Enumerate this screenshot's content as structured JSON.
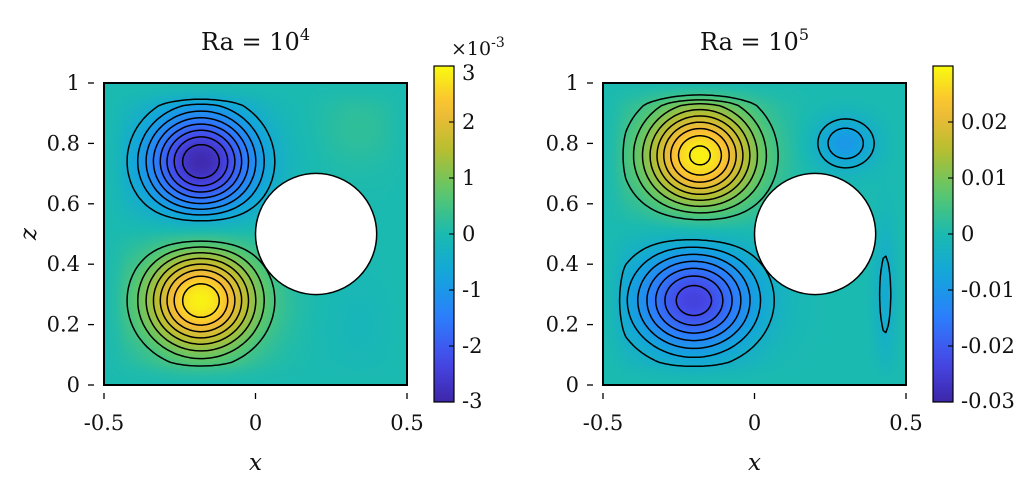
{
  "chart_data": [
    {
      "type": "heatmap",
      "title": "Ra = 10^4",
      "title_base": "Ra = 10",
      "title_exp": "4",
      "xlabel": "x",
      "ylabel": "z",
      "xlim": [
        -0.5,
        0.5
      ],
      "ylim": [
        0,
        1
      ],
      "xticks": [
        "-0.5",
        "0",
        "0.5"
      ],
      "yticks": [
        "0",
        "0.2",
        "0.4",
        "0.6",
        "0.8",
        "1"
      ],
      "obstacle": {
        "shape": "circle",
        "center_x": 0.2,
        "center_z": 0.5,
        "radius": 0.2
      },
      "colorbar": {
        "clim": [
          -3,
          3
        ],
        "scale_label": "×10^-3",
        "scale_base": "×10",
        "scale_exp": "-3",
        "ticks": [
          "-3",
          "-2",
          "-1",
          "0",
          "1",
          "2",
          "3"
        ],
        "tick_values": [
          -3,
          -2,
          -1,
          0,
          1,
          2,
          3
        ]
      },
      "features": [
        {
          "kind": "min",
          "x": -0.18,
          "z": 0.74,
          "value": -2.9,
          "sx": 0.13,
          "sz": 0.12
        },
        {
          "kind": "max",
          "x": -0.18,
          "z": 0.28,
          "value": 2.9,
          "sx": 0.13,
          "sz": 0.12
        },
        {
          "kind": "max",
          "x": 0.34,
          "z": 0.85,
          "value": 0.25,
          "sx": 0.09,
          "sz": 0.09
        },
        {
          "kind": "min",
          "x": 0.34,
          "z": 0.2,
          "value": -0.15,
          "sx": 0.08,
          "sz": 0.12
        }
      ],
      "contour_levels": [
        -2.6,
        -2.3,
        -2.0,
        -1.7,
        -1.4,
        -1.1,
        -0.8,
        -0.5,
        0.5,
        0.8,
        1.1,
        1.4,
        1.7,
        2.0,
        2.3,
        2.6
      ]
    },
    {
      "type": "heatmap",
      "title": "Ra = 10^5",
      "title_base": "Ra = 10",
      "title_exp": "5",
      "xlabel": "x",
      "ylabel": "",
      "xlim": [
        -0.5,
        0.5
      ],
      "ylim": [
        0,
        1
      ],
      "xticks": [
        "-0.5",
        "0",
        "0.5"
      ],
      "yticks": [
        "0",
        "0.2",
        "0.4",
        "0.6",
        "0.8",
        "1"
      ],
      "obstacle": {
        "shape": "circle",
        "center_x": 0.2,
        "center_z": 0.5,
        "radius": 0.2
      },
      "colorbar": {
        "clim": [
          -0.03,
          0.03
        ],
        "scale_label": "",
        "ticks": [
          "-0.03",
          "-0.02",
          "-0.01",
          "0",
          "0.01",
          "0.02"
        ],
        "tick_values": [
          -0.03,
          -0.02,
          -0.01,
          0,
          0.01,
          0.02
        ]
      },
      "features": [
        {
          "kind": "max",
          "x": -0.18,
          "z": 0.76,
          "value": 0.029,
          "sx": 0.13,
          "sz": 0.12
        },
        {
          "kind": "min",
          "x": -0.2,
          "z": 0.28,
          "value": -0.024,
          "sx": 0.14,
          "sz": 0.12
        },
        {
          "kind": "min",
          "x": 0.3,
          "z": 0.8,
          "value": -0.01,
          "sx": 0.07,
          "sz": 0.06
        },
        {
          "kind": "min",
          "x": 0.44,
          "z": 0.3,
          "value": -0.006,
          "sx": 0.03,
          "sz": 0.16
        }
      ],
      "contour_levels": [
        -0.022,
        -0.019,
        -0.016,
        -0.013,
        -0.01,
        -0.007,
        -0.004,
        0.004,
        0.007,
        0.01,
        0.013,
        0.016,
        0.019,
        0.022,
        0.025,
        0.028
      ]
    }
  ]
}
